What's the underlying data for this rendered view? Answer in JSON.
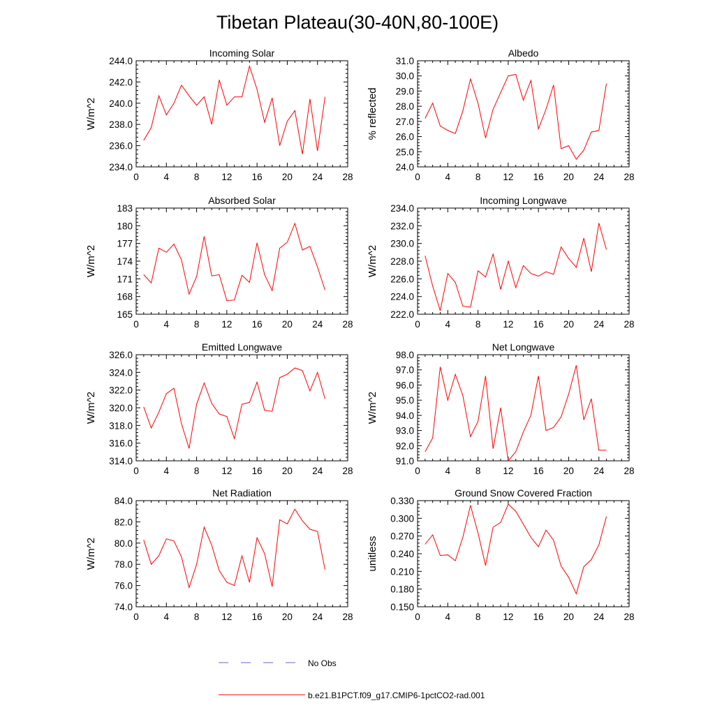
{
  "figure_title": "Tibetan Plateau(30-40N,80-100E)",
  "colors": {
    "model_line": "#ff0000",
    "obs_line": "#6666cc",
    "axis": "#000000"
  },
  "legend": {
    "obs_label": "No Obs",
    "model_label": "b.e21.B1PCT.f09_g17.CMIP6-1pctCO2-rad.001"
  },
  "chart_data": [
    {
      "type": "line",
      "title": "Incoming Solar",
      "ylabel": "W/m^2",
      "xlim": [
        0,
        28
      ],
      "ylim": [
        234,
        244
      ],
      "xticks": [
        0,
        4,
        8,
        12,
        16,
        20,
        24,
        28
      ],
      "yticks": [
        234,
        236,
        238,
        240,
        242,
        244
      ],
      "ytick_labels": [
        "234.0",
        "236.0",
        "238.0",
        "240.0",
        "242.0",
        "244.0"
      ],
      "x": [
        1,
        2,
        3,
        4,
        5,
        6,
        7,
        8,
        9,
        10,
        11,
        12,
        13,
        14,
        15,
        16,
        17,
        18,
        19,
        20,
        21,
        22,
        23,
        24,
        25
      ],
      "series": [
        {
          "name": "b.e21.B1PCT.f09_g17.CMIP6-1pctCO2-rad.001",
          "values": [
            236.5,
            237.7,
            240.7,
            238.9,
            240.0,
            241.7,
            240.7,
            239.8,
            240.6,
            238.0,
            242.2,
            239.8,
            240.6,
            240.6,
            243.5,
            241.3,
            238.2,
            240.5,
            236.0,
            238.3,
            239.3,
            235.2,
            240.4,
            235.5,
            240.6
          ]
        }
      ]
    },
    {
      "type": "line",
      "title": "Albedo",
      "ylabel": "% reflected",
      "xlim": [
        0,
        28
      ],
      "ylim": [
        24,
        31
      ],
      "xticks": [
        0,
        4,
        8,
        12,
        16,
        20,
        24,
        28
      ],
      "yticks": [
        24,
        25,
        26,
        27,
        28,
        29,
        30,
        31
      ],
      "ytick_labels": [
        "24.0",
        "25.0",
        "26.0",
        "27.0",
        "28.0",
        "29.0",
        "30.0",
        "31.0"
      ],
      "x": [
        1,
        2,
        3,
        4,
        5,
        6,
        7,
        8,
        9,
        10,
        11,
        12,
        13,
        14,
        15,
        16,
        17,
        18,
        19,
        20,
        21,
        22,
        23,
        24,
        25
      ],
      "series": [
        {
          "name": "b.e21.B1PCT.f09_g17.CMIP6-1pctCO2-rad.001",
          "values": [
            27.2,
            28.2,
            26.7,
            26.4,
            26.2,
            27.7,
            29.8,
            28.2,
            25.9,
            27.8,
            28.9,
            30.0,
            30.1,
            28.4,
            29.7,
            26.5,
            27.8,
            29.4,
            25.2,
            25.4,
            24.5,
            25.1,
            26.3,
            26.4,
            29.5
          ]
        }
      ]
    },
    {
      "type": "line",
      "title": "Absorbed Solar",
      "ylabel": "W/m^2",
      "xlim": [
        0,
        28
      ],
      "ylim": [
        165,
        183
      ],
      "xticks": [
        0,
        4,
        8,
        12,
        16,
        20,
        24,
        28
      ],
      "yticks": [
        165,
        168,
        171,
        174,
        177,
        180,
        183
      ],
      "ytick_labels": [
        "165",
        "168",
        "171",
        "174",
        "177",
        "180",
        "183"
      ],
      "x": [
        1,
        2,
        3,
        4,
        5,
        6,
        7,
        8,
        9,
        10,
        11,
        12,
        13,
        14,
        15,
        16,
        17,
        18,
        19,
        20,
        21,
        22,
        23,
        24,
        25
      ],
      "series": [
        {
          "name": "b.e21.B1PCT.f09_g17.CMIP6-1pctCO2-rad.001",
          "values": [
            171.7,
            170.3,
            176.2,
            175.5,
            176.9,
            174.2,
            168.4,
            171.4,
            178.2,
            171.5,
            171.7,
            167.3,
            167.4,
            171.6,
            170.4,
            177.1,
            171.7,
            169.0,
            176.2,
            177.2,
            180.4,
            175.9,
            176.5,
            173.0,
            169.1
          ]
        }
      ]
    },
    {
      "type": "line",
      "title": "Incoming Longwave",
      "ylabel": "W/m^2",
      "xlim": [
        0,
        28
      ],
      "ylim": [
        222,
        234
      ],
      "xticks": [
        0,
        4,
        8,
        12,
        16,
        20,
        24,
        28
      ],
      "yticks": [
        222,
        224,
        226,
        228,
        230,
        232,
        234
      ],
      "ytick_labels": [
        "222.0",
        "224.0",
        "226.0",
        "228.0",
        "230.0",
        "232.0",
        "234.0"
      ],
      "x": [
        1,
        2,
        3,
        4,
        5,
        6,
        7,
        8,
        9,
        10,
        11,
        12,
        13,
        14,
        15,
        16,
        17,
        18,
        19,
        20,
        21,
        22,
        23,
        24,
        25
      ],
      "series": [
        {
          "name": "b.e21.B1PCT.f09_g17.CMIP6-1pctCO2-rad.001",
          "values": [
            228.6,
            225.2,
            222.4,
            226.6,
            225.6,
            222.9,
            222.8,
            226.9,
            226.2,
            228.8,
            224.8,
            228.0,
            225.0,
            227.5,
            226.6,
            226.3,
            226.8,
            226.5,
            229.6,
            228.3,
            227.3,
            230.6,
            226.8,
            232.3,
            229.3
          ]
        }
      ]
    },
    {
      "type": "line",
      "title": "Emitted Longwave",
      "ylabel": "W/m^2",
      "xlim": [
        0,
        28
      ],
      "ylim": [
        314,
        326
      ],
      "xticks": [
        0,
        4,
        8,
        12,
        16,
        20,
        24,
        28
      ],
      "yticks": [
        314,
        316,
        318,
        320,
        322,
        324,
        326
      ],
      "ytick_labels": [
        "314.0",
        "316.0",
        "318.0",
        "320.0",
        "322.0",
        "324.0",
        "326.0"
      ],
      "x": [
        1,
        2,
        3,
        4,
        5,
        6,
        7,
        8,
        9,
        10,
        11,
        12,
        13,
        14,
        15,
        16,
        17,
        18,
        19,
        20,
        21,
        22,
        23,
        24,
        25
      ],
      "series": [
        {
          "name": "b.e21.B1PCT.f09_g17.CMIP6-1pctCO2-rad.001",
          "values": [
            320.1,
            317.7,
            319.5,
            321.6,
            322.2,
            318.2,
            315.4,
            320.4,
            322.8,
            320.5,
            319.3,
            319.0,
            316.5,
            320.4,
            320.6,
            322.9,
            319.7,
            319.6,
            323.4,
            323.8,
            324.5,
            324.2,
            321.9,
            324.0,
            321.0
          ]
        }
      ]
    },
    {
      "type": "line",
      "title": "Net Longwave",
      "ylabel": "W/m^2",
      "xlim": [
        0,
        28
      ],
      "ylim": [
        91,
        98
      ],
      "xticks": [
        0,
        4,
        8,
        12,
        16,
        20,
        24,
        28
      ],
      "yticks": [
        91,
        92,
        93,
        94,
        95,
        96,
        97,
        98
      ],
      "ytick_labels": [
        "91.0",
        "92.0",
        "93.0",
        "94.0",
        "95.0",
        "96.0",
        "97.0",
        "98.0"
      ],
      "x": [
        1,
        2,
        3,
        4,
        5,
        6,
        7,
        8,
        9,
        10,
        11,
        12,
        13,
        14,
        15,
        16,
        17,
        18,
        19,
        20,
        21,
        22,
        23,
        24,
        25
      ],
      "series": [
        {
          "name": "b.e21.B1PCT.f09_g17.CMIP6-1pctCO2-rad.001",
          "values": [
            91.6,
            92.5,
            97.2,
            95.0,
            96.7,
            95.3,
            92.6,
            93.6,
            96.6,
            91.8,
            94.5,
            91.0,
            91.6,
            92.9,
            94.0,
            96.6,
            93.0,
            93.2,
            93.9,
            95.4,
            97.3,
            93.7,
            95.1,
            91.7,
            91.7
          ]
        }
      ]
    },
    {
      "type": "line",
      "title": "Net Radiation",
      "ylabel": "W/m^2",
      "xlim": [
        0,
        28
      ],
      "ylim": [
        74,
        84
      ],
      "xticks": [
        0,
        4,
        8,
        12,
        16,
        20,
        24,
        28
      ],
      "yticks": [
        74,
        76,
        78,
        80,
        82,
        84
      ],
      "ytick_labels": [
        "74.0",
        "76.0",
        "78.0",
        "80.0",
        "82.0",
        "84.0"
      ],
      "x": [
        1,
        2,
        3,
        4,
        5,
        6,
        7,
        8,
        9,
        10,
        11,
        12,
        13,
        14,
        15,
        16,
        17,
        18,
        19,
        20,
        21,
        22,
        23,
        24,
        25
      ],
      "series": [
        {
          "name": "b.e21.B1PCT.f09_g17.CMIP6-1pctCO2-rad.001",
          "values": [
            80.3,
            78.0,
            78.8,
            80.4,
            80.2,
            78.7,
            75.8,
            78.0,
            81.5,
            79.8,
            77.4,
            76.3,
            76.0,
            78.8,
            76.3,
            80.5,
            79.0,
            75.9,
            82.2,
            81.8,
            83.2,
            82.1,
            81.3,
            81.1,
            77.5
          ]
        }
      ]
    },
    {
      "type": "line",
      "title": "Ground Snow Covered Fraction",
      "ylabel": "unitless",
      "xlim": [
        0,
        28
      ],
      "ylim": [
        0.15,
        0.33
      ],
      "xticks": [
        0,
        4,
        8,
        12,
        16,
        20,
        24,
        28
      ],
      "yticks": [
        0.15,
        0.18,
        0.21,
        0.24,
        0.27,
        0.3,
        0.33
      ],
      "ytick_labels": [
        "0.150",
        "0.180",
        "0.210",
        "0.240",
        "0.270",
        "0.300",
        "0.330"
      ],
      "x": [
        1,
        2,
        3,
        4,
        5,
        6,
        7,
        8,
        9,
        10,
        11,
        12,
        13,
        14,
        15,
        16,
        17,
        18,
        19,
        20,
        21,
        22,
        23,
        24,
        25
      ],
      "series": [
        {
          "name": "b.e21.B1PCT.f09_g17.CMIP6-1pctCO2-rad.001",
          "values": [
            0.256,
            0.272,
            0.237,
            0.238,
            0.228,
            0.268,
            0.322,
            0.275,
            0.22,
            0.285,
            0.293,
            0.324,
            0.312,
            0.29,
            0.268,
            0.252,
            0.28,
            0.263,
            0.219,
            0.2,
            0.172,
            0.218,
            0.23,
            0.255,
            0.303
          ]
        }
      ]
    }
  ]
}
